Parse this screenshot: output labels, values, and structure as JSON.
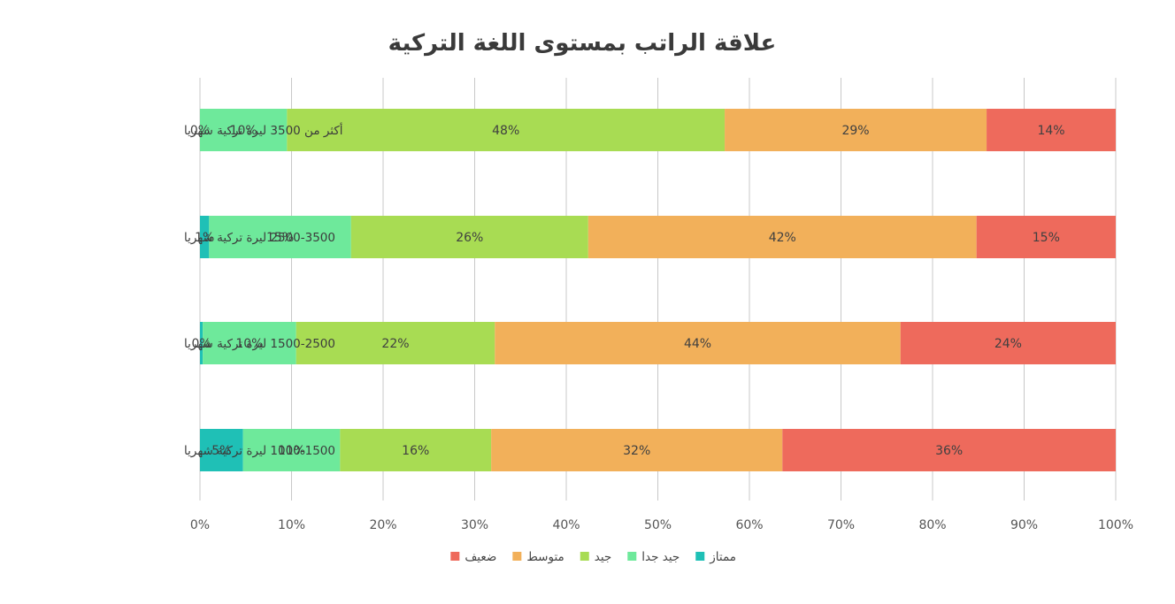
{
  "chart_data": {
    "type": "bar",
    "orientation": "horizontal",
    "stacked": "percent",
    "title": "علاقة الراتب بمستوى اللغة التركية",
    "categories": [
      "أكثر من 3500 ليرة تركية شهريا",
      "2500-3500 ليرة تركية شهريا",
      "1500-2500 ليرة تركية شهريا",
      "1000-1500 ليرة تركية شهريا"
    ],
    "series": [
      {
        "name": "ممتاز",
        "color": "#1fc0b6",
        "values": [
          0,
          1,
          0.3,
          4.7
        ],
        "labels": [
          "0%",
          "1%",
          "0%",
          "5%"
        ]
      },
      {
        "name": "جيد جدا",
        "color": "#6ee99b",
        "values": [
          9.5,
          15.5,
          10.2,
          10.6
        ],
        "labels": [
          "10%",
          "15%",
          "10%",
          "11%"
        ]
      },
      {
        "name": "جيد",
        "color": "#a8dc53",
        "values": [
          47.8,
          25.9,
          21.7,
          16.5
        ],
        "labels": [
          "48%",
          "26%",
          "22%",
          "16%"
        ]
      },
      {
        "name": "متوسط",
        "color": "#f2b05a",
        "values": [
          28.6,
          42.4,
          44.3,
          31.8
        ],
        "labels": [
          "29%",
          "42%",
          "44%",
          "32%"
        ]
      },
      {
        "name": "ضعيف",
        "color": "#ee6a5c",
        "values": [
          14.1,
          15.2,
          23.5,
          36.4
        ],
        "labels": [
          "14%",
          "15%",
          "24%",
          "36%"
        ]
      }
    ],
    "xlim": [
      0,
      100
    ],
    "xticks": [
      "0%",
      "10%",
      "20%",
      "30%",
      "40%",
      "50%",
      "60%",
      "70%",
      "80%",
      "90%",
      "100%"
    ],
    "grid": true,
    "legend_position": "bottom"
  }
}
